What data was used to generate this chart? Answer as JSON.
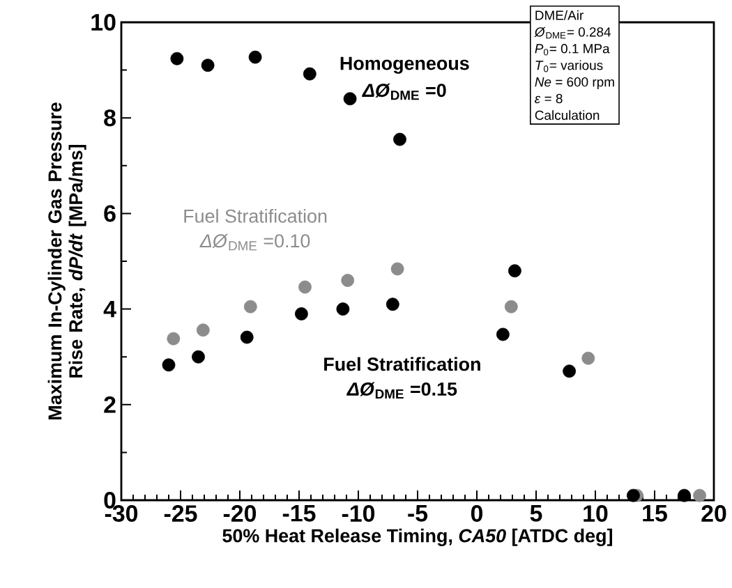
{
  "chart_data": {
    "type": "scatter",
    "xlabel": "50% Heat Release Timing, *CA50* [ATDC deg]",
    "ylabel": "Maximum In-Cylinder Gas Pressure Rise Rate, *dP/dt* [MPa/ms]",
    "xlim": [
      -30,
      20
    ],
    "ylim": [
      0,
      10
    ],
    "xticks": [
      -30,
      -25,
      -20,
      -15,
      -10,
      -5,
      0,
      5,
      10,
      15,
      20
    ],
    "yticks": [
      0,
      2,
      4,
      6,
      8,
      10
    ],
    "marker": "circle",
    "grid": false,
    "legend": false,
    "series": [
      {
        "name": "Homogeneous",
        "color": "#000000",
        "x": [
          -25.3,
          -22.7,
          -18.7,
          -14.1,
          -10.7,
          -6.5
        ],
        "values": [
          9.24,
          9.1,
          9.27,
          8.92,
          8.4,
          7.55
        ]
      },
      {
        "name": "Fuel Stratification",
        "color": "#8c8c8c",
        "x": [
          -25.6,
          -23.1,
          -19.1,
          -14.5,
          -10.9,
          -6.7,
          2.9,
          9.4,
          13.5,
          18.8
        ],
        "values": [
          3.38,
          3.56,
          4.05,
          4.46,
          4.6,
          4.84,
          4.05,
          2.97,
          0.1,
          0.1
        ]
      },
      {
        "name": "Fuel Stratification",
        "color": "#000000",
        "x": [
          -26,
          -23.5,
          -19.4,
          -14.8,
          -11.3,
          -7.1,
          2.2,
          3.2,
          7.8,
          13.2,
          17.5
        ],
        "values": [
          2.83,
          3.0,
          3.41,
          3.9,
          4.0,
          4.1,
          3.47,
          4.8,
          2.7,
          0.1,
          0.1
        ]
      }
    ],
    "annotations": [
      "*ΔØ*$_{DME}$ =0",
      "*ΔØ*$_{DME}$ =0.10",
      "*ΔØ*$_{DME}$ =0.15",
      "DME/Air",
      "*Ø*$_{DME}$= 0.284",
      "*P*$_{0}$= 0.1 MPa",
      "*T*$_{0}$= various",
      "*Ne* = 600 rpm",
      "*ε* = 8",
      "Calculation"
    ]
  }
}
